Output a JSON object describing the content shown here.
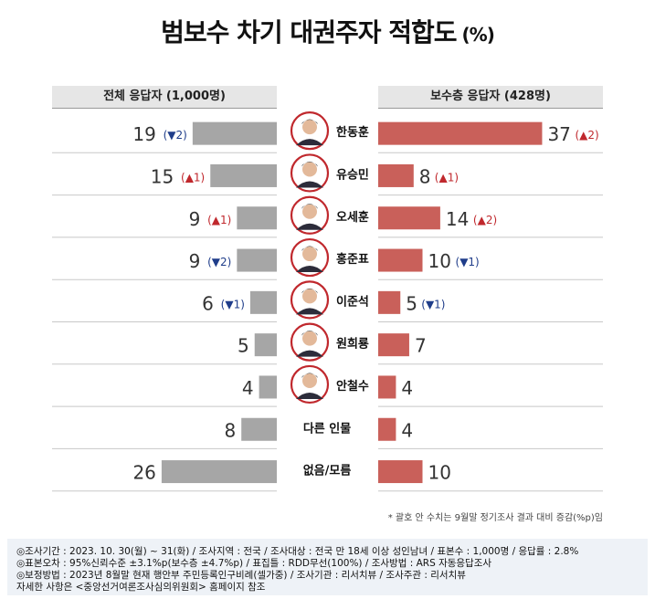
{
  "title": "범보수 차기 대권주자 적합도",
  "title_unit": "(%)",
  "chart_data": {
    "type": "bar",
    "categories": [
      "한동훈",
      "유승민",
      "오세훈",
      "홍준표",
      "이준석",
      "원희룡",
      "안철수",
      "다른 인물",
      "없음/모름"
    ],
    "series": [
      {
        "name": "전체 응답자 (1,000명)",
        "values": [
          19,
          15,
          9,
          9,
          6,
          5,
          4,
          8,
          26
        ],
        "change": [
          {
            "dir": "down",
            "val": "2"
          },
          {
            "dir": "up",
            "val": "1"
          },
          {
            "dir": "up",
            "val": "1"
          },
          {
            "dir": "down",
            "val": "2"
          },
          {
            "dir": "down",
            "val": "1"
          },
          null,
          null,
          null,
          null
        ],
        "color": "#a6a6a6"
      },
      {
        "name": "보수층 응답자 (428명)",
        "values": [
          37,
          8,
          14,
          10,
          5,
          7,
          4,
          4,
          10
        ],
        "change": [
          {
            "dir": "up",
            "val": "2"
          },
          {
            "dir": "up",
            "val": "1"
          },
          {
            "dir": "up",
            "val": "2"
          },
          {
            "dir": "down",
            "val": "1"
          },
          {
            "dir": "down",
            "val": "1"
          },
          null,
          null,
          null,
          null
        ],
        "color": "#c9605a"
      }
    ],
    "portraits": [
      true,
      true,
      true,
      true,
      true,
      true,
      true,
      false,
      false
    ],
    "up_color": "#c0282d",
    "down_color": "#1f3d8a"
  },
  "footnote": "* 괄호 안 수치는 9월말 정기조사 결과 대비 증감(%p)임",
  "notes": [
    "◎조사기간 : 2023. 10. 30(월) ~ 31(화) / 조사지역 : 전국 / 조사대상 : 전국 만 18세 이상 성인남녀 / 표본수 : 1,000명 / 응답률 : 2.8%",
    "◎표본오차 : 95%신뢰수준 ±3.1%p(보수층 ±4.7%p) / 표집틀 : RDD무선(100%) / 조사방법 : ARS 자동응답조사",
    "◎보정방법 : 2023년 8월말 현재 행안부 주민등록인구비례(셀가중) / 조사기관 : 리서치뷰 / 조사주관 : 리서치뷰",
    "자세한 사항은 <중앙선거여론조사심의위원회> 홈페이지 참조"
  ]
}
